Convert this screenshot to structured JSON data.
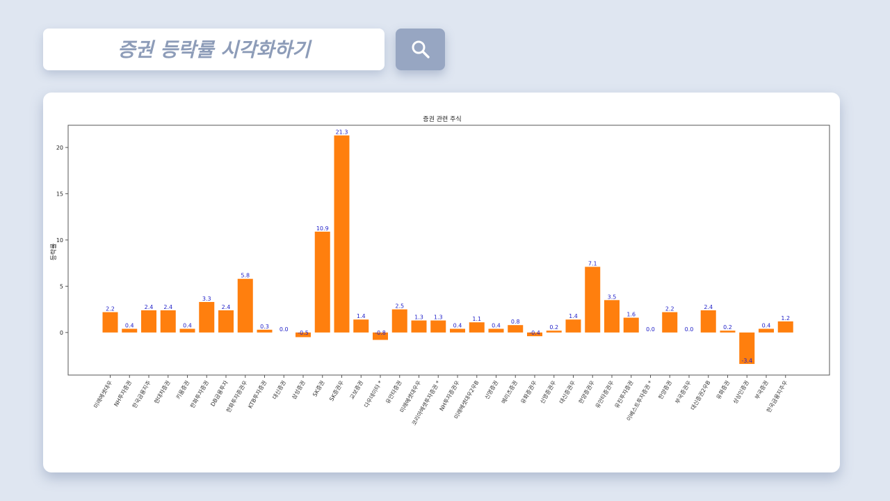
{
  "search": {
    "placeholder": "증권 등락률 시각화하기",
    "button_icon": "search-icon"
  },
  "colors": {
    "background": "#dfe6f1",
    "bar": "#ff7f0e",
    "data_label": "#2020c8",
    "search_button": "#97a6c2"
  },
  "chart_data": {
    "type": "bar",
    "title": "증권 관련 주식",
    "xlabel": "",
    "ylabel": "등락률",
    "ylim": [
      -4.6,
      22.4
    ],
    "yticks": [
      0,
      5,
      10,
      15,
      20
    ],
    "grid": false,
    "categories": [
      "미래에셋대우",
      "NH투자증권",
      "한국금융지주",
      "현대차증권",
      "키움증권",
      "한화투자증권",
      "DB금융투자",
      "한화투자증권우",
      "KTB투자증권",
      "대신증권",
      "삼성증권",
      "SK증권",
      "SK증권우",
      "교보증권",
      "다우데이타 *",
      "유안타증권",
      "미래에셋대우우",
      "코리아에셋투자증권 *",
      "NH투자증권우",
      "미래에셋대우2우B",
      "신영증권",
      "메리츠증권",
      "유화증권우",
      "신영증권우",
      "대신증권우",
      "한양증권우",
      "유안타증권우",
      "유진투자증권",
      "이베스트투자증권 *",
      "한양증권",
      "부국증권우",
      "대신증권2우B",
      "유화증권",
      "상상인증권",
      "부국증권",
      "한국금융지주우"
    ],
    "values": [
      2.2,
      0.4,
      2.4,
      2.4,
      0.4,
      3.3,
      2.4,
      5.8,
      0.3,
      0.0,
      -0.5,
      10.9,
      21.3,
      1.4,
      -0.8,
      2.5,
      1.3,
      1.3,
      0.4,
      1.1,
      0.4,
      0.8,
      -0.4,
      0.2,
      1.4,
      7.1,
      3.5,
      1.6,
      0.0,
      2.2,
      0.0,
      2.4,
      0.2,
      -3.4,
      0.4,
      1.2
    ],
    "data_labels": [
      "2.2",
      "0.4",
      "2.4",
      "2.4",
      "0.4",
      "3.3",
      "2.4",
      "5.8",
      "0.3",
      "0.0",
      "-0.5",
      "10.9",
      "21.3",
      "1.4",
      "-0.8",
      "2.5",
      "1.3",
      "1.3",
      "0.4",
      "1.1",
      "0.4",
      "0.8",
      "-0.4",
      "0.2",
      "1.4",
      "7.1",
      "3.5",
      "1.6",
      "0.0",
      "2.2",
      "0.0",
      "2.4",
      "0.2",
      "-3.4",
      "0.4",
      "1.2"
    ]
  }
}
